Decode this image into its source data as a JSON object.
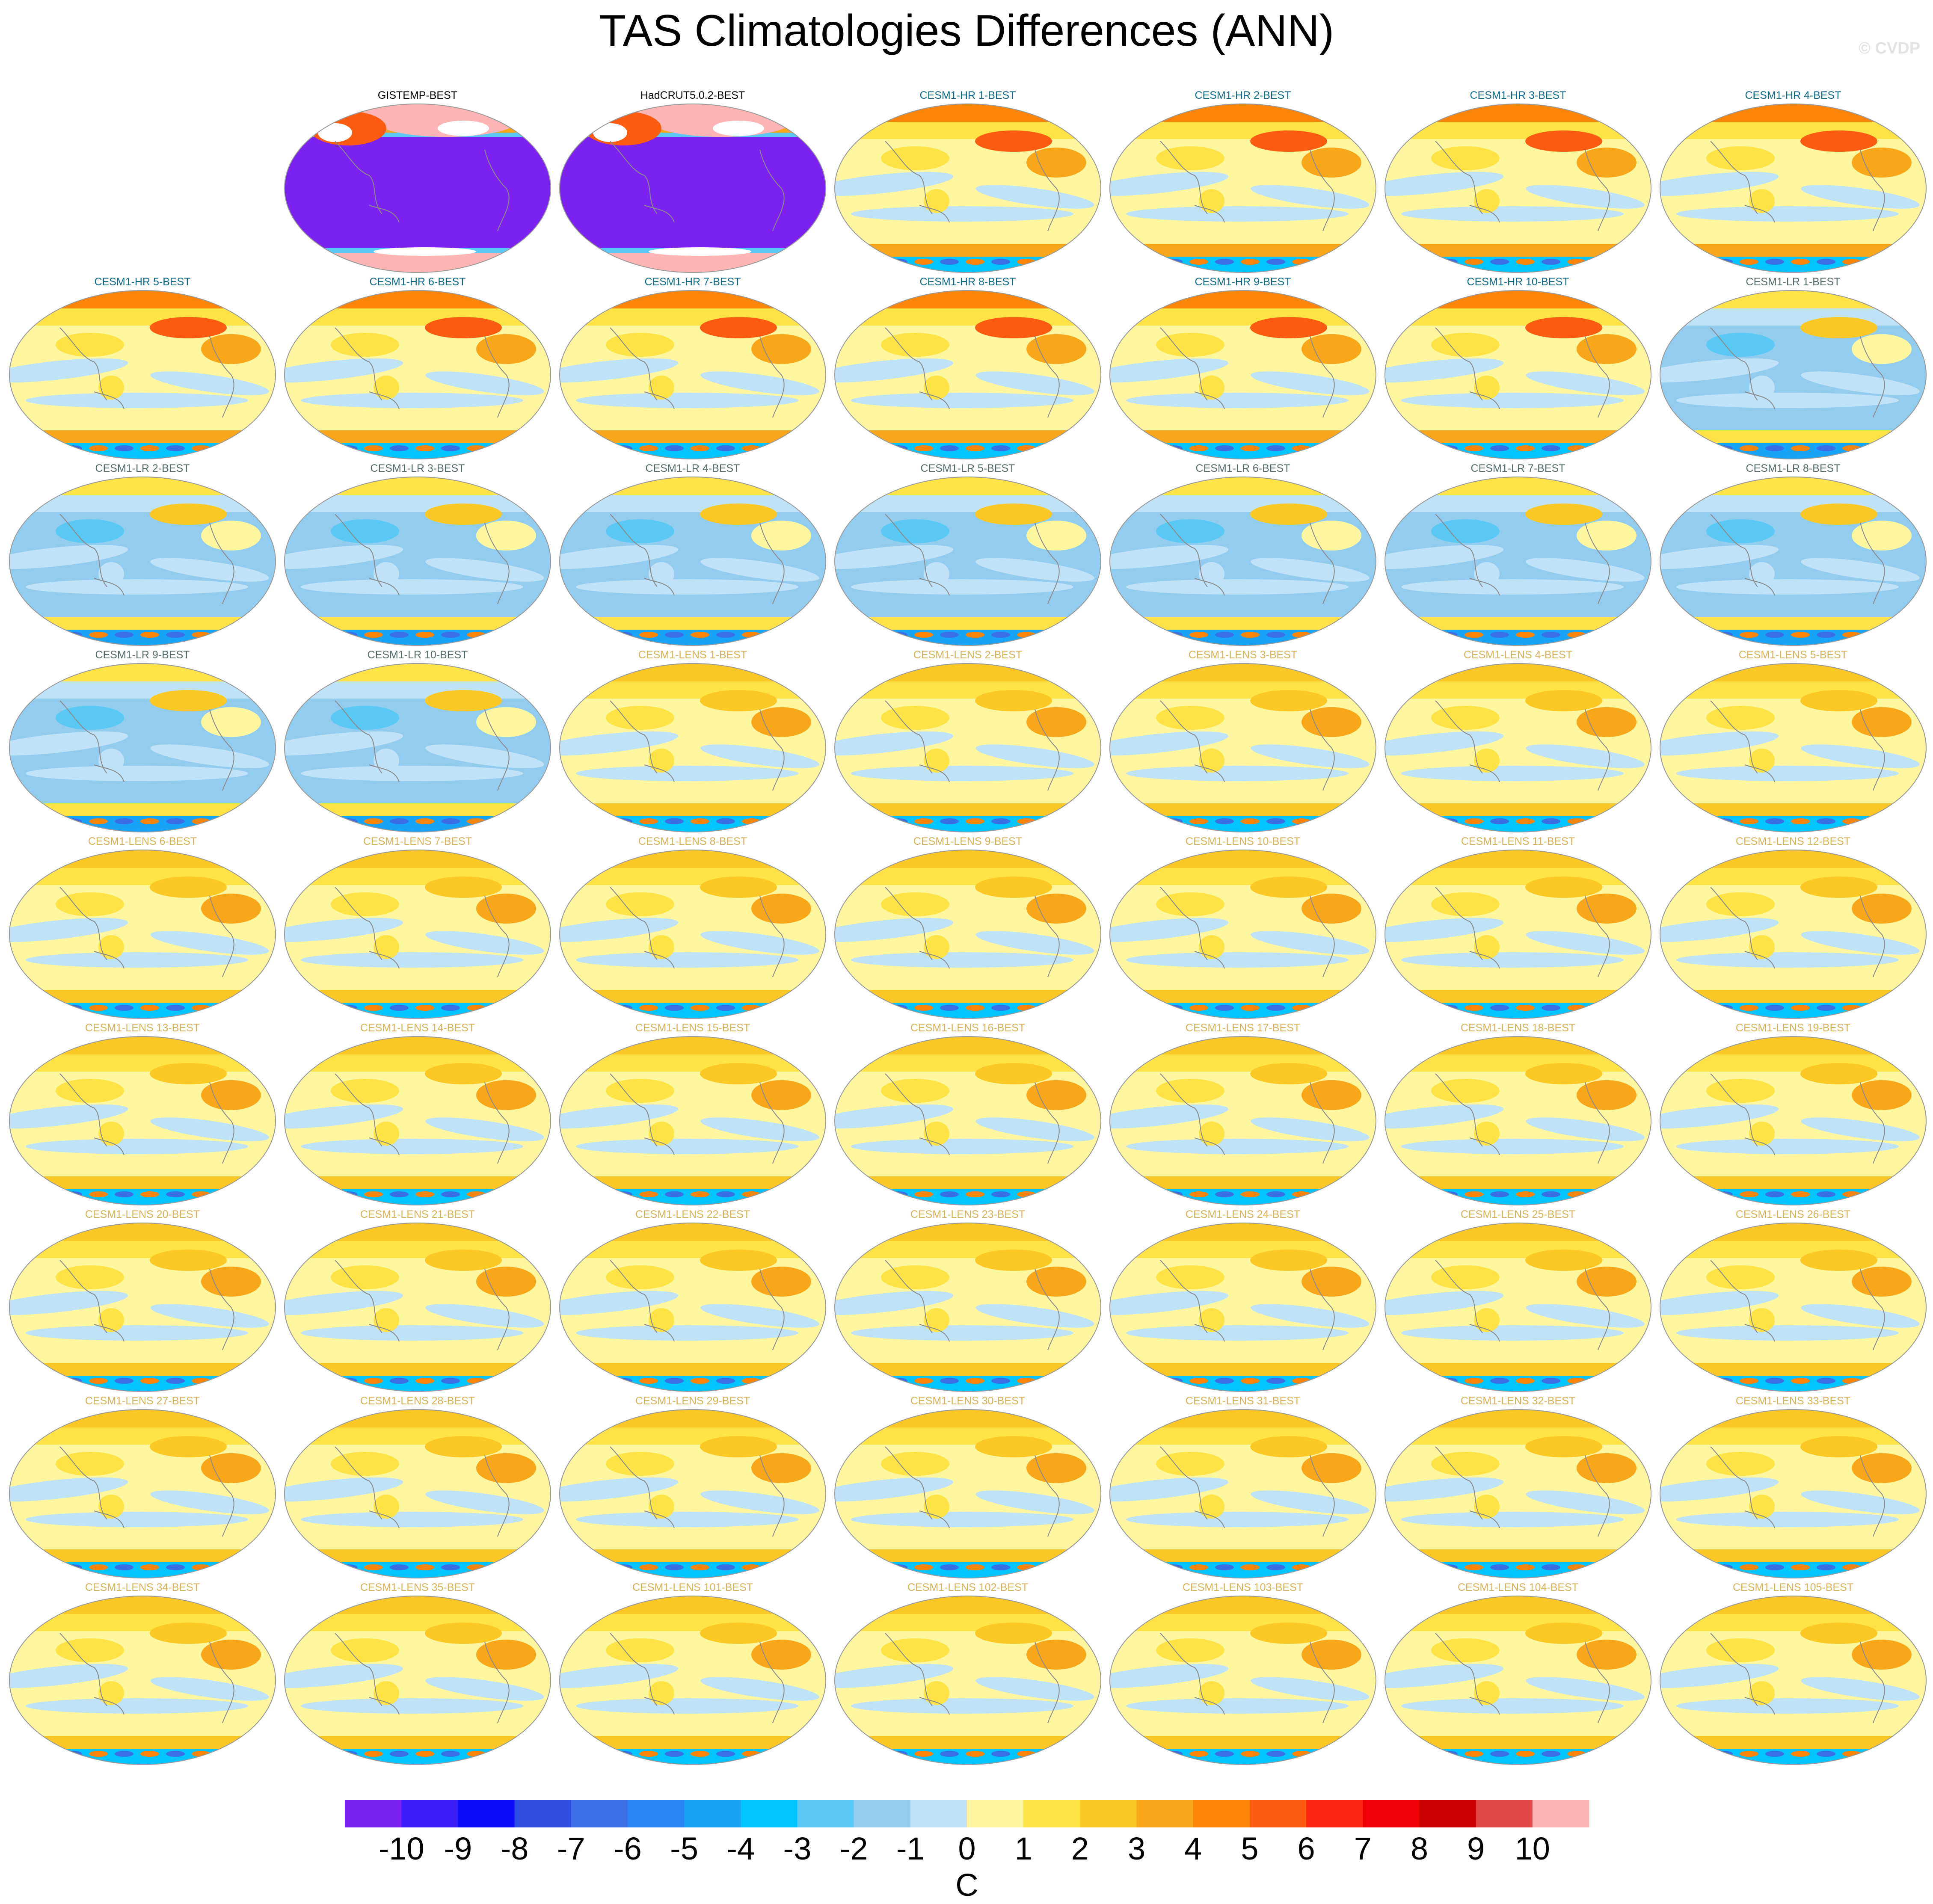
{
  "title": "TAS Climatologies Differences (ANN)",
  "watermark": "© CVDP",
  "colors": {
    "obs_title": "#000000",
    "hr_title": "#0e6a8a",
    "lr_title": "#556b6b",
    "lens_title": "#d9b257",
    "coast": "#8a8a8a"
  },
  "chart_data": {
    "type": "heatmap",
    "description_type": "panel grid of global maps (Robinson-like ellipse)",
    "units": "C",
    "colorbar": {
      "label": "C",
      "ticks": [
        "-10",
        "-9",
        "-8",
        "-7",
        "-6",
        "-5",
        "-4",
        "-3",
        "-2",
        "-1",
        "0",
        "1",
        "2",
        "3",
        "4",
        "5",
        "6",
        "7",
        "8",
        "9",
        "10"
      ],
      "colors": [
        "#7b22f0",
        "#3c1df5",
        "#0a0cf8",
        "#2d4ee0",
        "#3a6fe6",
        "#2a86f7",
        "#17a3f7",
        "#00c4ff",
        "#5ac7f5",
        "#92cdef",
        "#bfe2f7",
        "#fff7a0",
        "#ffe347",
        "#fcc825",
        "#f9a71a",
        "#fb8509",
        "#fc5c10",
        "#fe2411",
        "#f00007",
        "#cc0000",
        "#e04848",
        "#ffb5b5"
      ]
    },
    "grid": {
      "columns": 7,
      "rows": 9,
      "first_row_empty_columns": 1
    },
    "panels": [
      {
        "label": "GISTEMP-BEST",
        "group": "obs"
      },
      {
        "label": "HadCRUT5.0.2-BEST",
        "group": "obs"
      },
      {
        "label": "CESM1-HR 1-BEST",
        "group": "hr"
      },
      {
        "label": "CESM1-HR 2-BEST",
        "group": "hr"
      },
      {
        "label": "CESM1-HR 3-BEST",
        "group": "hr"
      },
      {
        "label": "CESM1-HR 4-BEST",
        "group": "hr"
      },
      {
        "label": "CESM1-HR 5-BEST",
        "group": "hr"
      },
      {
        "label": "CESM1-HR 6-BEST",
        "group": "hr"
      },
      {
        "label": "CESM1-HR 7-BEST",
        "group": "hr"
      },
      {
        "label": "CESM1-HR 8-BEST",
        "group": "hr"
      },
      {
        "label": "CESM1-HR 9-BEST",
        "group": "hr"
      },
      {
        "label": "CESM1-HR 10-BEST",
        "group": "hr"
      },
      {
        "label": "CESM1-LR 1-BEST",
        "group": "lr"
      },
      {
        "label": "CESM1-LR 2-BEST",
        "group": "lr"
      },
      {
        "label": "CESM1-LR 3-BEST",
        "group": "lr"
      },
      {
        "label": "CESM1-LR 4-BEST",
        "group": "lr"
      },
      {
        "label": "CESM1-LR 5-BEST",
        "group": "lr"
      },
      {
        "label": "CESM1-LR 6-BEST",
        "group": "lr"
      },
      {
        "label": "CESM1-LR 7-BEST",
        "group": "lr"
      },
      {
        "label": "CESM1-LR 8-BEST",
        "group": "lr"
      },
      {
        "label": "CESM1-LR 9-BEST",
        "group": "lr"
      },
      {
        "label": "CESM1-LR 10-BEST",
        "group": "lr"
      },
      {
        "label": "CESM1-LENS 1-BEST",
        "group": "lens"
      },
      {
        "label": "CESM1-LENS 2-BEST",
        "group": "lens"
      },
      {
        "label": "CESM1-LENS 3-BEST",
        "group": "lens"
      },
      {
        "label": "CESM1-LENS 4-BEST",
        "group": "lens"
      },
      {
        "label": "CESM1-LENS 5-BEST",
        "group": "lens"
      },
      {
        "label": "CESM1-LENS 6-BEST",
        "group": "lens"
      },
      {
        "label": "CESM1-LENS 7-BEST",
        "group": "lens"
      },
      {
        "label": "CESM1-LENS 8-BEST",
        "group": "lens"
      },
      {
        "label": "CESM1-LENS 9-BEST",
        "group": "lens"
      },
      {
        "label": "CESM1-LENS 10-BEST",
        "group": "lens"
      },
      {
        "label": "CESM1-LENS 11-BEST",
        "group": "lens"
      },
      {
        "label": "CESM1-LENS 12-BEST",
        "group": "lens"
      },
      {
        "label": "CESM1-LENS 13-BEST",
        "group": "lens"
      },
      {
        "label": "CESM1-LENS 14-BEST",
        "group": "lens"
      },
      {
        "label": "CESM1-LENS 15-BEST",
        "group": "lens"
      },
      {
        "label": "CESM1-LENS 16-BEST",
        "group": "lens"
      },
      {
        "label": "CESM1-LENS 17-BEST",
        "group": "lens"
      },
      {
        "label": "CESM1-LENS 18-BEST",
        "group": "lens"
      },
      {
        "label": "CESM1-LENS 19-BEST",
        "group": "lens"
      },
      {
        "label": "CESM1-LENS 20-BEST",
        "group": "lens"
      },
      {
        "label": "CESM1-LENS 21-BEST",
        "group": "lens"
      },
      {
        "label": "CESM1-LENS 22-BEST",
        "group": "lens"
      },
      {
        "label": "CESM1-LENS 23-BEST",
        "group": "lens"
      },
      {
        "label": "CESM1-LENS 24-BEST",
        "group": "lens"
      },
      {
        "label": "CESM1-LENS 25-BEST",
        "group": "lens"
      },
      {
        "label": "CESM1-LENS 26-BEST",
        "group": "lens"
      },
      {
        "label": "CESM1-LENS 27-BEST",
        "group": "lens"
      },
      {
        "label": "CESM1-LENS 28-BEST",
        "group": "lens"
      },
      {
        "label": "CESM1-LENS 29-BEST",
        "group": "lens"
      },
      {
        "label": "CESM1-LENS 30-BEST",
        "group": "lens"
      },
      {
        "label": "CESM1-LENS 31-BEST",
        "group": "lens"
      },
      {
        "label": "CESM1-LENS 32-BEST",
        "group": "lens"
      },
      {
        "label": "CESM1-LENS 33-BEST",
        "group": "lens"
      },
      {
        "label": "CESM1-LENS 34-BEST",
        "group": "lens"
      },
      {
        "label": "CESM1-LENS 35-BEST",
        "group": "lens"
      },
      {
        "label": "CESM1-LENS 101-BEST",
        "group": "lens"
      },
      {
        "label": "CESM1-LENS 102-BEST",
        "group": "lens"
      },
      {
        "label": "CESM1-LENS 103-BEST",
        "group": "lens"
      },
      {
        "label": "CESM1-LENS 104-BEST",
        "group": "lens"
      },
      {
        "label": "CESM1-LENS 105-BEST",
        "group": "lens"
      }
    ]
  }
}
